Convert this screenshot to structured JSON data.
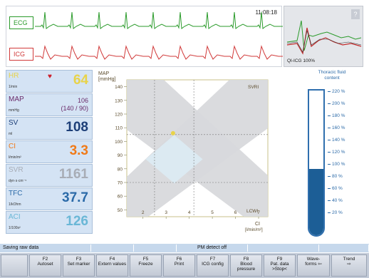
{
  "waveforms": {
    "ecg_label": "ECG",
    "icg_label": "ICG",
    "time": "11:08:18",
    "colors": {
      "ecg": "#2b9b2b",
      "icg": "#d13a3a"
    }
  },
  "mini_monitor": {
    "label": "QI-ICG 100%",
    "help": "?"
  },
  "params": [
    {
      "name": "HR",
      "unit": "1/min",
      "value": "64",
      "color": "#e8d34a"
    },
    {
      "name": "MAP",
      "unit": "mmHg",
      "value": "106",
      "value2": "(140 / 90)",
      "color": "#6a2b6a"
    },
    {
      "name": "SV",
      "unit": "ml",
      "value": "108",
      "color": "#1d3f78"
    },
    {
      "name": "CI",
      "unit": "l/min/m²",
      "value": "3.3",
      "color": "#f07a18"
    },
    {
      "name": "SVR",
      "unit": "dyn·s·cm⁻⁵",
      "value": "1161",
      "color": "#a8adb6"
    },
    {
      "name": "TFC",
      "unit": "1/kOhm",
      "value": "37.7",
      "color": "#2b6aa8"
    },
    {
      "name": "ACI",
      "unit": "1/100s²",
      "value": "126",
      "color": "#6ab7d6"
    }
  ],
  "chart": {
    "ylabel": "MAP",
    "yunit": "[mmHg]",
    "svri_label": "SVRI",
    "lcwi_label": "LCWI",
    "xlabel": "CI",
    "xunit": "[l/min/m²]"
  },
  "chart_data": {
    "type": "scatter",
    "title": "",
    "xlabel": "CI [l/min/m²]",
    "ylabel": "MAP [mmHg]",
    "x_ticks": [
      "2",
      "3",
      "4",
      "5",
      "6",
      "7"
    ],
    "y_ticks": [
      "140",
      "130",
      "120",
      "110",
      "100",
      "90",
      "80",
      "70",
      "60",
      "50"
    ],
    "xlim": [
      1.3,
      7.4
    ],
    "ylim": [
      45,
      145
    ],
    "points": [
      {
        "x": 3.3,
        "y": 106
      }
    ],
    "reference_lines": {
      "x": [
        2.5,
        4.2
      ],
      "y": [
        70,
        105
      ]
    },
    "grid": true,
    "point_color": "#e8d34a"
  },
  "thoracic": {
    "title_line1": "Thoracic fluid",
    "title_line2": "content",
    "scale": [
      "220 %",
      "200 %",
      "180 %",
      "160 %",
      "140 %",
      "120 %",
      "100 %",
      "80 %",
      "60 %",
      "40 %",
      "20 %"
    ],
    "fill_fraction": 0.46
  },
  "status": {
    "left": "Saving raw data",
    "middle": "PM detect off"
  },
  "fkeys": [
    {
      "num": "",
      "label": ""
    },
    {
      "num": "F2",
      "label": "Autoset"
    },
    {
      "num": "F3",
      "label": "Set marker"
    },
    {
      "num": "F4",
      "label": "Extern values"
    },
    {
      "num": "F5",
      "label": "Freeze"
    },
    {
      "num": "F6",
      "label": "Print"
    },
    {
      "num": "F7",
      "label": "ICG config"
    },
    {
      "num": "F8",
      "label": "Blood pressure"
    },
    {
      "num": "F9",
      "label": "Pat. data >Stop<"
    },
    {
      "num": "Wave-",
      "label": "forms ⇦"
    },
    {
      "num": "Trend",
      "label": "⇨"
    }
  ]
}
